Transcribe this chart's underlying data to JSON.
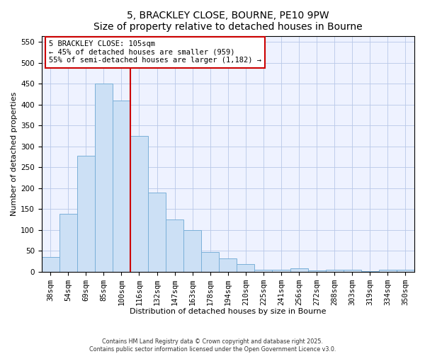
{
  "title1": "5, BRACKLEY CLOSE, BOURNE, PE10 9PW",
  "title2": "Size of property relative to detached houses in Bourne",
  "xlabel": "Distribution of detached houses by size in Bourne",
  "ylabel": "Number of detached properties",
  "categories": [
    "38sqm",
    "54sqm",
    "69sqm",
    "85sqm",
    "100sqm",
    "116sqm",
    "132sqm",
    "147sqm",
    "163sqm",
    "178sqm",
    "194sqm",
    "210sqm",
    "225sqm",
    "241sqm",
    "256sqm",
    "272sqm",
    "288sqm",
    "303sqm",
    "319sqm",
    "334sqm",
    "350sqm"
  ],
  "values": [
    35,
    138,
    277,
    450,
    410,
    325,
    190,
    125,
    100,
    46,
    31,
    18,
    5,
    5,
    8,
    3,
    5,
    5,
    1,
    5,
    5
  ],
  "bar_color": "#cce0f5",
  "bar_edge_color": "#7ab0d8",
  "vline_x_index": 4.5,
  "vline_color": "#cc0000",
  "annotation_text": "5 BRACKLEY CLOSE: 105sqm\n← 45% of detached houses are smaller (959)\n55% of semi-detached houses are larger (1,182) →",
  "annotation_box_color": "#ffffff",
  "annotation_box_edge": "#cc0000",
  "ylim": [
    0,
    565
  ],
  "yticks": [
    0,
    50,
    100,
    150,
    200,
    250,
    300,
    350,
    400,
    450,
    500,
    550
  ],
  "footnote1": "Contains HM Land Registry data © Crown copyright and database right 2025.",
  "footnote2": "Contains public sector information licensed under the Open Government Licence v3.0.",
  "bg_color": "#eef2ff",
  "fig_bg_color": "#ffffff",
  "title_fontsize": 10,
  "axis_label_fontsize": 8,
  "tick_fontsize": 7.5,
  "annotation_fontsize": 7.5
}
